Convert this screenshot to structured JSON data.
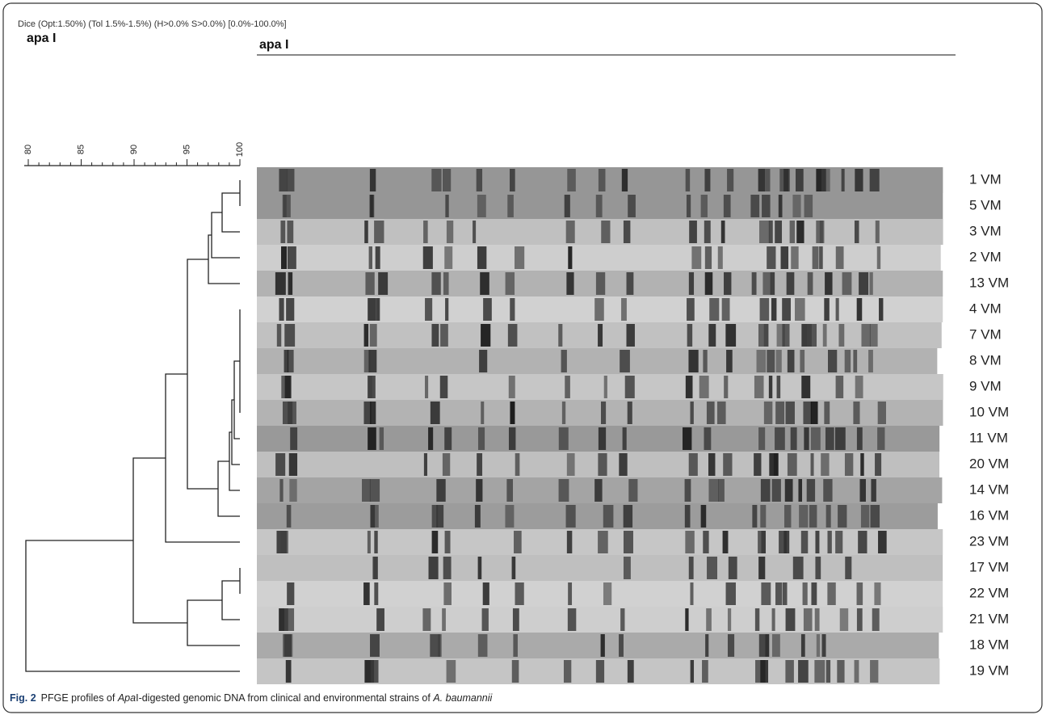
{
  "header": {
    "settings": "Dice (Opt:1.50%) (Tol 1.5%-1.5%) (H>0.0% S>0.0%) [0.0%-100.0%]",
    "left_title": "apa I",
    "gel_title": "apa I"
  },
  "scale": {
    "ticks": [
      80,
      85,
      90,
      95,
      100
    ]
  },
  "strains": [
    "1 VM",
    "5 VM",
    "3 VM",
    "2 VM",
    "13 VM",
    "4 VM",
    "7 VM",
    "8 VM",
    "9 VM",
    "10 VM",
    "11 VM",
    "20 VM",
    "14 VM",
    "16 VM",
    "23 VM",
    "17 VM",
    "22 VM",
    "21 VM",
    "18 VM",
    "19 VM"
  ],
  "caption": {
    "label": "Fig. 2",
    "parts": [
      "PFGE profiles of ",
      "Apa",
      "I-digested genomic DNA from clinical and environmental strains of ",
      "A. baumannii"
    ]
  }
}
